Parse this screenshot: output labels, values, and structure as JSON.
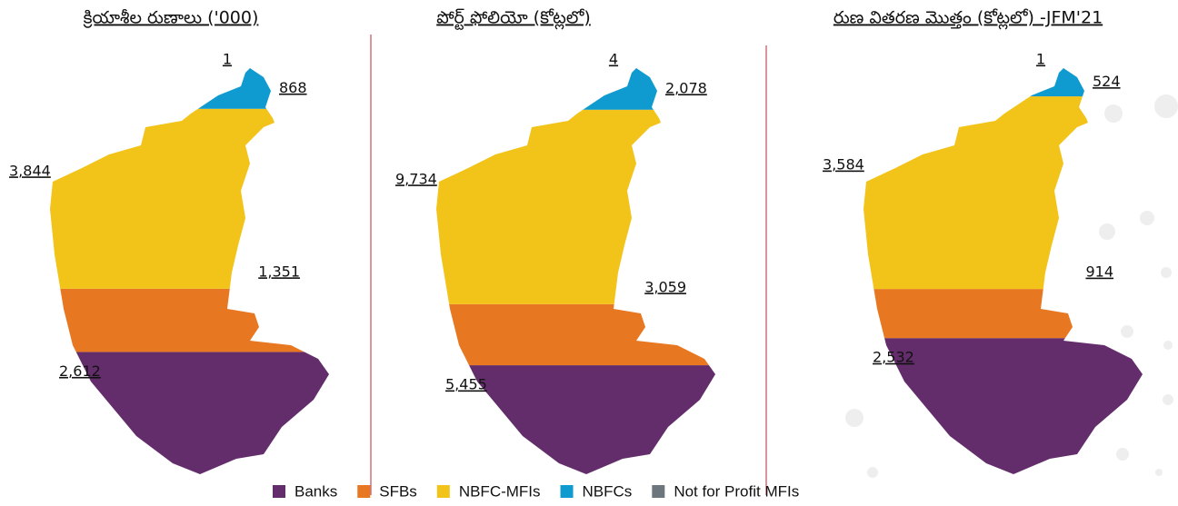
{
  "chart_data": {
    "type": "map-stack",
    "categories": [
      "క్రియాశీల రుణాలు ('000)",
      "పోర్ట్ ఫోలియో (కోట్లలో)",
      "రుణ వితరణ మొత్తం (కోట్లలో) -JFM'21"
    ],
    "series": [
      {
        "name": "Banks",
        "color": "#632d6b",
        "values": [
          2612,
          5455,
          2532
        ],
        "value_labels": [
          "2,612",
          "5,455",
          "2,532"
        ]
      },
      {
        "name": "SFBs",
        "color": "#e87722",
        "values": [
          1351,
          3059,
          914
        ],
        "value_labels": [
          "1,351",
          "3,059",
          "914"
        ]
      },
      {
        "name": "NBFC-MFIs",
        "color": "#f2c318",
        "values": [
          3844,
          9734,
          3584
        ],
        "value_labels": [
          "3,844",
          "9,734",
          "3,584"
        ]
      },
      {
        "name": "NBFCs",
        "color": "#0f9bcf",
        "values": [
          868,
          2078,
          524
        ],
        "value_labels": [
          "868",
          "2,078",
          "524"
        ]
      },
      {
        "name": "Not for Profit MFIs",
        "color": "#6d767d",
        "values": [
          1,
          4,
          1
        ],
        "value_labels": [
          "1",
          "4",
          "1"
        ]
      }
    ]
  }
}
